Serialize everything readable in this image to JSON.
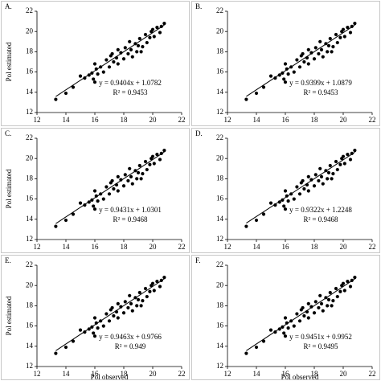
{
  "chart_data": [
    {
      "type": "scatter",
      "title": "A.",
      "ylabel": "Pol estimated",
      "equation": "y = 0.9404x + 1.0782",
      "r2": "R² = 0.9453",
      "color": "#000000",
      "x": [
        13.3,
        14.0,
        14.5,
        15.0,
        15.3,
        15.6,
        15.8,
        16.0,
        16.1,
        16.2,
        16.4,
        16.6,
        16.8,
        17.0,
        17.1,
        17.3,
        17.5,
        17.6,
        17.8,
        18.0,
        18.1,
        18.3,
        18.5,
        18.6,
        18.8,
        19.0,
        19.1,
        19.3,
        19.5,
        19.6,
        19.8,
        20.0,
        20.1,
        20.3,
        20.5,
        20.6,
        20.8,
        16.0,
        17.2,
        18.4,
        19.2,
        19.9,
        15.9,
        17.6,
        18.9
      ],
      "values": [
        13.3,
        13.9,
        14.5,
        15.6,
        15.4,
        15.7,
        15.9,
        15.0,
        16.3,
        15.8,
        16.5,
        16.0,
        17.2,
        16.5,
        17.6,
        17.0,
        17.4,
        16.8,
        17.9,
        17.3,
        18.4,
        17.8,
        18.2,
        17.5,
        18.8,
        18.6,
        19.3,
        18.5,
        19.7,
        18.9,
        19.4,
        20.2,
        19.5,
        20.4,
        19.9,
        20.5,
        20.8,
        16.8,
        17.8,
        19.0,
        18.0,
        20.0,
        15.3,
        18.2,
        18.0
      ],
      "trendline": {
        "x": [
          13.3,
          20.8
        ],
        "y": [
          13.585,
          20.638
        ]
      },
      "xlim": [
        12,
        22
      ],
      "xticks": [
        12,
        14,
        16,
        18,
        20,
        22
      ],
      "ylim": [
        12,
        22
      ],
      "yticks": [
        12,
        14,
        16,
        18,
        20,
        22
      ]
    },
    {
      "type": "scatter",
      "title": "B.",
      "equation": "y = 0.9399x + 1.0879",
      "r2": "R² = 0.9453",
      "color": "#000000",
      "x": [
        13.3,
        14.0,
        14.5,
        15.0,
        15.3,
        15.6,
        15.8,
        16.0,
        16.1,
        16.2,
        16.4,
        16.6,
        16.8,
        17.0,
        17.1,
        17.3,
        17.5,
        17.6,
        17.8,
        18.0,
        18.1,
        18.3,
        18.5,
        18.6,
        18.8,
        19.0,
        19.1,
        19.3,
        19.5,
        19.6,
        19.8,
        20.0,
        20.1,
        20.3,
        20.5,
        20.6,
        20.8,
        16.0,
        17.2,
        18.4,
        19.2,
        19.9,
        15.9,
        17.6,
        18.9
      ],
      "values": [
        13.3,
        13.9,
        14.5,
        15.6,
        15.4,
        15.7,
        15.9,
        15.0,
        16.3,
        15.8,
        16.5,
        16.0,
        17.2,
        16.5,
        17.6,
        17.0,
        17.4,
        16.8,
        17.9,
        17.3,
        18.4,
        17.8,
        18.2,
        17.5,
        18.8,
        18.6,
        19.3,
        18.5,
        19.7,
        18.9,
        19.4,
        20.2,
        19.5,
        20.4,
        19.9,
        20.5,
        20.8,
        16.8,
        17.8,
        19.0,
        18.0,
        20.0,
        15.3,
        18.2,
        18.0
      ],
      "trendline": {
        "x": [
          13.3,
          20.8
        ],
        "y": [
          13.589,
          20.638
        ]
      },
      "xlim": [
        12,
        22
      ],
      "xticks": [
        12,
        14,
        16,
        18,
        20,
        22
      ],
      "ylim": [
        12,
        22
      ],
      "yticks": [
        12,
        14,
        16,
        18,
        20,
        22
      ]
    },
    {
      "type": "scatter",
      "title": "C.",
      "ylabel": "Pol estimated",
      "equation": "y = 0.9431x + 1.0301",
      "r2": "R² = 0.9468",
      "color": "#000000",
      "x": [
        13.3,
        14.0,
        14.5,
        15.0,
        15.3,
        15.6,
        15.8,
        16.0,
        16.1,
        16.2,
        16.4,
        16.6,
        16.8,
        17.0,
        17.1,
        17.3,
        17.5,
        17.6,
        17.8,
        18.0,
        18.1,
        18.3,
        18.5,
        18.6,
        18.8,
        19.0,
        19.1,
        19.3,
        19.5,
        19.6,
        19.8,
        20.0,
        20.1,
        20.3,
        20.5,
        20.6,
        20.8,
        16.0,
        17.2,
        18.4,
        19.2,
        19.9,
        15.9,
        17.6,
        18.9
      ],
      "values": [
        13.3,
        13.9,
        14.5,
        15.6,
        15.4,
        15.7,
        15.9,
        15.0,
        16.3,
        15.8,
        16.5,
        16.0,
        17.2,
        16.5,
        17.6,
        17.0,
        17.4,
        16.8,
        17.9,
        17.3,
        18.4,
        17.8,
        18.2,
        17.5,
        18.8,
        18.6,
        19.3,
        18.5,
        19.7,
        18.9,
        19.4,
        20.2,
        19.5,
        20.4,
        19.9,
        20.5,
        20.8,
        16.8,
        17.8,
        19.0,
        18.0,
        20.0,
        15.3,
        18.2,
        18.0
      ],
      "trendline": {
        "x": [
          13.3,
          20.8
        ],
        "y": [
          13.573,
          20.646
        ]
      },
      "xlim": [
        12,
        22
      ],
      "xticks": [
        12,
        14,
        16,
        18,
        20,
        22
      ],
      "ylim": [
        12,
        22
      ],
      "yticks": [
        12,
        14,
        16,
        18,
        20,
        22
      ]
    },
    {
      "type": "scatter",
      "title": "D.",
      "equation": "y = 0.9322x + 1.2248",
      "r2": "R² = 0.9468",
      "color": "#000000",
      "x": [
        13.3,
        14.0,
        14.5,
        15.0,
        15.3,
        15.6,
        15.8,
        16.0,
        16.1,
        16.2,
        16.4,
        16.6,
        16.8,
        17.0,
        17.1,
        17.3,
        17.5,
        17.6,
        17.8,
        18.0,
        18.1,
        18.3,
        18.5,
        18.6,
        18.8,
        19.0,
        19.1,
        19.3,
        19.5,
        19.6,
        19.8,
        20.0,
        20.1,
        20.3,
        20.5,
        20.6,
        20.8,
        16.0,
        17.2,
        18.4,
        19.2,
        19.9,
        15.9,
        17.6,
        18.9
      ],
      "values": [
        13.3,
        13.9,
        14.5,
        15.6,
        15.4,
        15.7,
        15.9,
        15.0,
        16.3,
        15.8,
        16.5,
        16.0,
        17.2,
        16.5,
        17.6,
        17.0,
        17.4,
        16.8,
        17.9,
        17.3,
        18.4,
        17.8,
        18.2,
        17.5,
        18.8,
        18.6,
        19.3,
        18.5,
        19.7,
        18.9,
        19.4,
        20.2,
        19.5,
        20.4,
        19.9,
        20.5,
        20.8,
        16.8,
        17.8,
        19.0,
        18.0,
        20.0,
        15.3,
        18.2,
        18.0
      ],
      "trendline": {
        "x": [
          13.3,
          20.8
        ],
        "y": [
          13.623,
          20.615
        ]
      },
      "xlim": [
        12,
        22
      ],
      "xticks": [
        12,
        14,
        16,
        18,
        20,
        22
      ],
      "ylim": [
        12,
        22
      ],
      "yticks": [
        12,
        14,
        16,
        18,
        20,
        22
      ]
    },
    {
      "type": "scatter",
      "title": "E.",
      "ylabel": "Pol estimated",
      "xlabel": "Pol observed",
      "equation": "y = 0.9463x + 0.9766",
      "r2": "R² = 0.949",
      "color": "#000000",
      "x": [
        13.3,
        14.0,
        14.5,
        15.0,
        15.3,
        15.6,
        15.8,
        16.0,
        16.1,
        16.2,
        16.4,
        16.6,
        16.8,
        17.0,
        17.1,
        17.3,
        17.5,
        17.6,
        17.8,
        18.0,
        18.1,
        18.3,
        18.5,
        18.6,
        18.8,
        19.0,
        19.1,
        19.3,
        19.5,
        19.6,
        19.8,
        20.0,
        20.1,
        20.3,
        20.5,
        20.6,
        20.8,
        16.0,
        17.2,
        18.4,
        19.2,
        19.9,
        15.9,
        17.6,
        18.9
      ],
      "values": [
        13.3,
        13.9,
        14.5,
        15.6,
        15.4,
        15.7,
        15.9,
        15.0,
        16.3,
        15.8,
        16.5,
        16.0,
        17.2,
        16.5,
        17.6,
        17.0,
        17.4,
        16.8,
        17.9,
        17.3,
        18.4,
        17.8,
        18.2,
        17.5,
        18.8,
        18.6,
        19.3,
        18.5,
        19.7,
        18.9,
        19.4,
        20.2,
        19.5,
        20.4,
        19.9,
        20.5,
        20.8,
        16.8,
        17.8,
        19.0,
        18.0,
        20.0,
        15.3,
        18.2,
        18.0
      ],
      "trendline": {
        "x": [
          13.3,
          20.8
        ],
        "y": [
          13.563,
          20.66
        ]
      },
      "xlim": [
        12,
        22
      ],
      "xticks": [
        12,
        14,
        16,
        18,
        20,
        22
      ],
      "ylim": [
        12,
        22
      ],
      "yticks": [
        12,
        14,
        16,
        18,
        20,
        22
      ]
    },
    {
      "type": "scatter",
      "title": "F.",
      "xlabel": "Pol observed",
      "equation": "y = 0.9451x + 0.9952",
      "r2": "R² = 0.9495",
      "color": "#000000",
      "x": [
        13.3,
        14.0,
        14.5,
        15.0,
        15.3,
        15.6,
        15.8,
        16.0,
        16.1,
        16.2,
        16.4,
        16.6,
        16.8,
        17.0,
        17.1,
        17.3,
        17.5,
        17.6,
        17.8,
        18.0,
        18.1,
        18.3,
        18.5,
        18.6,
        18.8,
        19.0,
        19.1,
        19.3,
        19.5,
        19.6,
        19.8,
        20.0,
        20.1,
        20.3,
        20.5,
        20.6,
        20.8,
        16.0,
        17.2,
        18.4,
        19.2,
        19.9,
        15.9,
        17.6,
        18.9
      ],
      "values": [
        13.3,
        13.9,
        14.5,
        15.6,
        15.4,
        15.7,
        15.9,
        15.0,
        16.3,
        15.8,
        16.5,
        16.0,
        17.2,
        16.5,
        17.6,
        17.0,
        17.4,
        16.8,
        17.9,
        17.3,
        18.4,
        17.8,
        18.2,
        17.5,
        18.8,
        18.6,
        19.3,
        18.5,
        19.7,
        18.9,
        19.4,
        20.2,
        19.5,
        20.4,
        19.9,
        20.5,
        20.8,
        16.8,
        17.8,
        19.0,
        18.0,
        20.0,
        15.3,
        18.2,
        18.0
      ],
      "trendline": {
        "x": [
          13.3,
          20.8
        ],
        "y": [
          13.565,
          20.653
        ]
      },
      "xlim": [
        12,
        22
      ],
      "xticks": [
        12,
        14,
        16,
        18,
        20,
        22
      ],
      "ylim": [
        12,
        22
      ],
      "yticks": [
        12,
        14,
        16,
        18,
        20,
        22
      ]
    }
  ]
}
